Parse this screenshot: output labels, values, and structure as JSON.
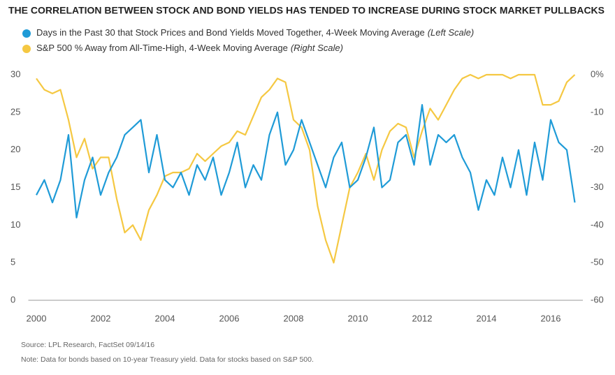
{
  "chart_data": {
    "type": "line",
    "title": "THE CORRELATION BETWEEN STOCK AND BOND YIELDS HAS TENDED TO INCREASE DURING STOCK MARKET PULLBACKS",
    "x": [
      2000,
      2000.25,
      2000.5,
      2000.75,
      2001,
      2001.25,
      2001.5,
      2001.75,
      2002,
      2002.25,
      2002.5,
      2002.75,
      2003,
      2003.25,
      2003.5,
      2003.75,
      2004,
      2004.25,
      2004.5,
      2004.75,
      2005,
      2005.25,
      2005.5,
      2005.75,
      2006,
      2006.25,
      2006.5,
      2006.75,
      2007,
      2007.25,
      2007.5,
      2007.75,
      2008,
      2008.25,
      2008.5,
      2008.75,
      2009,
      2009.25,
      2009.5,
      2009.75,
      2010,
      2010.25,
      2010.5,
      2010.75,
      2011,
      2011.25,
      2011.5,
      2011.75,
      2012,
      2012.25,
      2012.5,
      2012.75,
      2013,
      2013.25,
      2013.5,
      2013.75,
      2014,
      2014.25,
      2014.5,
      2014.75,
      2015,
      2015.25,
      2015.5,
      2015.75,
      2016,
      2016.25,
      2016.5,
      2016.75
    ],
    "series": [
      {
        "name": "Days in the Past 30 that Stock Prices and Bond Yields Moved Together, 4-Week Moving Average",
        "note": "(Left Scale)",
        "color": "#1f9bd7",
        "axis": "y",
        "values": [
          14,
          16,
          13,
          16,
          22,
          11,
          16,
          19,
          14,
          17,
          19,
          22,
          23,
          24,
          17,
          22,
          16,
          15,
          17,
          14,
          18,
          16,
          19,
          14,
          17,
          21,
          15,
          18,
          16,
          22,
          25,
          18,
          20,
          24,
          21,
          18,
          15,
          19,
          21,
          15,
          16,
          19,
          23,
          15,
          16,
          21,
          22,
          18,
          26,
          18,
          22,
          21,
          22,
          19,
          17,
          12,
          16,
          14,
          19,
          15,
          20,
          14,
          21,
          16,
          24,
          21,
          20,
          13
        ]
      },
      {
        "name": "S&P 500 % Away from All-Time-High, 4-Week Moving Average",
        "note": "(Right Scale)",
        "color": "#f5c842",
        "axis": "y2",
        "values": [
          -1,
          -4,
          -5,
          -4,
          -12,
          -22,
          -17,
          -25,
          -22,
          -22,
          -33,
          -42,
          -40,
          -44,
          -36,
          -32,
          -27,
          -26,
          -26,
          -25,
          -21,
          -23,
          -21,
          -19,
          -18,
          -15,
          -16,
          -11,
          -6,
          -4,
          -1,
          -2,
          -12,
          -14,
          -20,
          -35,
          -44,
          -50,
          -40,
          -30,
          -26,
          -21,
          -28,
          -20,
          -15,
          -13,
          -14,
          -22,
          -15,
          -9,
          -12,
          -8,
          -4,
          -1,
          0,
          -1,
          0,
          0,
          0,
          -1,
          0,
          0,
          0,
          -8,
          -8,
          -7,
          -2,
          0
        ]
      }
    ],
    "xlim": [
      1999.75,
      2017
    ],
    "xticks": [
      2000,
      2002,
      2004,
      2006,
      2008,
      2010,
      2012,
      2014,
      2016
    ],
    "ylim": [
      0,
      30
    ],
    "yticks": [
      0,
      5,
      10,
      15,
      20,
      25,
      30
    ],
    "y2lim": [
      -60,
      0
    ],
    "y2ticks": [
      -60,
      -50,
      -40,
      -30,
      -20,
      -10,
      {
        "value": 0,
        "label": "0%"
      }
    ],
    "source": "Source: LPL Research, FactSet  09/14/16",
    "footnote": "Note: Data for bonds based on 10-year Treasury yield. Data for stocks based on S&P 500."
  }
}
